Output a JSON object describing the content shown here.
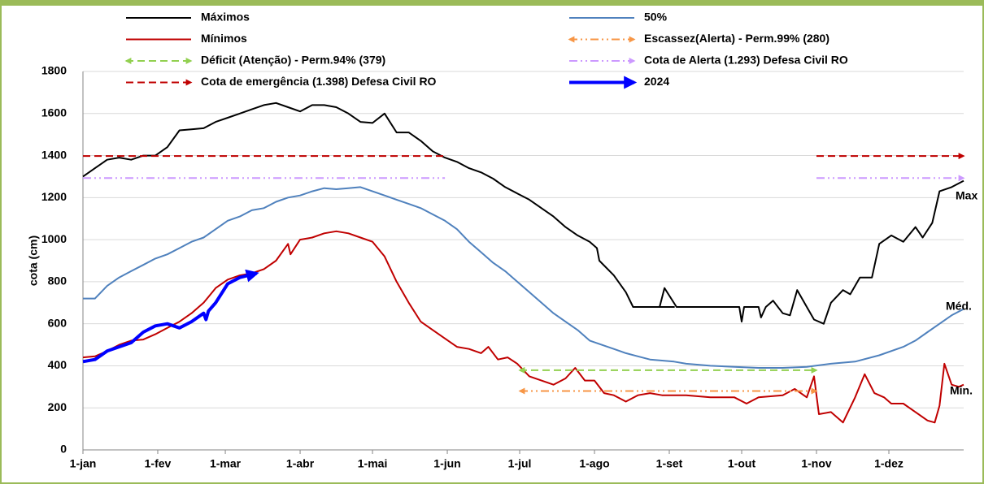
{
  "chart_data": {
    "type": "line",
    "ylabel": "cota (cm)",
    "xlim": [
      0,
      365
    ],
    "xticks": [
      {
        "value": 0,
        "label": "1-jan"
      },
      {
        "value": 31,
        "label": "1-fev"
      },
      {
        "value": 59,
        "label": "1-mar"
      },
      {
        "value": 90,
        "label": "1-abr"
      },
      {
        "value": 120,
        "label": "1-mai"
      },
      {
        "value": 151,
        "label": "1-jun"
      },
      {
        "value": 181,
        "label": "1-jul"
      },
      {
        "value": 212,
        "label": "1-ago"
      },
      {
        "value": 243,
        "label": "1-set"
      },
      {
        "value": 273,
        "label": "1-out"
      },
      {
        "value": 304,
        "label": "1-nov"
      },
      {
        "value": 334,
        "label": "1-dez"
      }
    ],
    "ylim": [
      0,
      1800
    ],
    "yticks": [
      0,
      200,
      400,
      600,
      800,
      1000,
      1200,
      1400,
      1600,
      1800
    ],
    "grid": true,
    "annotations": [
      "Max",
      "Méd.",
      "Min."
    ],
    "series": [
      {
        "name": "Máximos",
        "color": "#000000",
        "linestyle": "solid",
        "width": 2,
        "x": [
          0,
          5,
          10,
          15,
          20,
          25,
          30,
          35,
          40,
          45,
          50,
          55,
          60,
          65,
          70,
          75,
          80,
          85,
          90,
          95,
          100,
          105,
          110,
          115,
          120,
          125,
          130,
          135,
          140,
          145,
          150,
          155,
          160,
          165,
          170,
          175,
          180,
          185,
          190,
          195,
          200,
          205,
          210,
          213,
          214,
          220,
          225,
          228,
          235,
          240,
          245,
          239,
          241,
          246,
          255,
          270,
          272,
          273,
          274,
          280,
          281,
          283,
          286,
          290,
          293,
          296,
          300,
          303,
          307,
          310,
          315,
          318,
          322,
          327,
          330,
          335,
          340,
          345,
          348,
          352,
          355,
          360,
          365
        ],
        "values": [
          1300,
          1340,
          1380,
          1390,
          1380,
          1400,
          1400,
          1440,
          1520,
          1525,
          1530,
          1560,
          1580,
          1600,
          1620,
          1640,
          1650,
          1630,
          1610,
          1640,
          1640,
          1630,
          1600,
          1560,
          1555,
          1600,
          1510,
          1510,
          1470,
          1420,
          1390,
          1370,
          1340,
          1320,
          1290,
          1250,
          1220,
          1190,
          1150,
          1110,
          1060,
          1020,
          990,
          960,
          900,
          830,
          750,
          680,
          680,
          680,
          680,
          680,
          770,
          680,
          680,
          680,
          680,
          610,
          680,
          680,
          630,
          680,
          710,
          650,
          640,
          760,
          680,
          620,
          600,
          700,
          760,
          740,
          820,
          820,
          980,
          1020,
          990,
          1060,
          1010,
          1080,
          1230,
          1250,
          1280
        ]
      },
      {
        "name": "50%",
        "color": "#4f81bd",
        "linestyle": "solid",
        "width": 2,
        "x": [
          0,
          5,
          10,
          15,
          20,
          25,
          30,
          35,
          40,
          45,
          50,
          55,
          60,
          65,
          70,
          75,
          80,
          85,
          90,
          95,
          100,
          105,
          110,
          115,
          120,
          125,
          130,
          135,
          140,
          145,
          150,
          155,
          160,
          165,
          170,
          175,
          180,
          185,
          190,
          195,
          200,
          205,
          210,
          215,
          220,
          225,
          230,
          235,
          240,
          245,
          250,
          255,
          260,
          270,
          280,
          290,
          300,
          310,
          320,
          330,
          340,
          345,
          350,
          355,
          360,
          365
        ],
        "values": [
          720,
          720,
          780,
          820,
          850,
          880,
          910,
          930,
          960,
          990,
          1010,
          1050,
          1090,
          1110,
          1140,
          1150,
          1180,
          1200,
          1210,
          1230,
          1245,
          1240,
          1245,
          1250,
          1230,
          1210,
          1190,
          1170,
          1150,
          1120,
          1090,
          1050,
          990,
          940,
          890,
          850,
          800,
          750,
          700,
          650,
          610,
          570,
          520,
          500,
          480,
          460,
          445,
          430,
          425,
          420,
          410,
          405,
          400,
          395,
          390,
          390,
          395,
          410,
          420,
          450,
          490,
          520,
          560,
          600,
          640,
          670
        ]
      },
      {
        "name": "Mínimos",
        "color": "#c00000",
        "linestyle": "solid",
        "width": 2,
        "x": [
          0,
          5,
          10,
          15,
          20,
          25,
          30,
          35,
          40,
          45,
          50,
          55,
          60,
          65,
          70,
          75,
          80,
          85,
          86,
          90,
          95,
          100,
          105,
          110,
          115,
          120,
          125,
          130,
          135,
          140,
          145,
          150,
          155,
          160,
          165,
          168,
          172,
          176,
          180,
          185,
          190,
          195,
          200,
          204,
          208,
          212,
          216,
          220,
          225,
          230,
          235,
          240,
          250,
          260,
          270,
          275,
          280,
          290,
          295,
          300,
          303,
          305,
          310,
          315,
          320,
          324,
          328,
          332,
          335,
          340,
          345,
          350,
          353,
          355,
          357,
          360,
          363,
          365
        ],
        "values": [
          440,
          445,
          470,
          500,
          520,
          525,
          550,
          580,
          610,
          650,
          700,
          770,
          810,
          830,
          840,
          860,
          900,
          980,
          930,
          1000,
          1010,
          1030,
          1040,
          1030,
          1010,
          990,
          920,
          800,
          700,
          610,
          570,
          530,
          490,
          480,
          460,
          490,
          430,
          440,
          410,
          350,
          330,
          310,
          340,
          390,
          330,
          330,
          270,
          260,
          230,
          260,
          270,
          260,
          260,
          250,
          250,
          220,
          250,
          260,
          290,
          250,
          350,
          170,
          180,
          130,
          250,
          360,
          270,
          250,
          220,
          220,
          180,
          140,
          130,
          210,
          410,
          310,
          300,
          310
        ]
      },
      {
        "name": "Escassez(Alerta) - Perm.99% (280)",
        "color": "#f79646",
        "linestyle": "dashdotdot",
        "width": 2,
        "arrows": "both",
        "x": [
          181,
          304
        ],
        "values": [
          280,
          280
        ]
      },
      {
        "name": "Déficit (Atenção) - Perm.94% (379)",
        "color": "#92d050",
        "linestyle": "dashed",
        "width": 2,
        "arrows": "both",
        "x": [
          181,
          304
        ],
        "values": [
          379,
          379
        ]
      },
      {
        "name": "Cota de Alerta  (1.293) Defesa Civil RO",
        "color": "#cc99ff",
        "linestyle": "dashdotdot",
        "width": 2,
        "arrows": "end",
        "x": [
          0,
          150,
          151,
          304,
          365
        ],
        "values": [
          1293,
          1293,
          null,
          1293,
          1293
        ]
      },
      {
        "name": "Cota de emergência (1.398) Defesa Civil RO",
        "color": "#c00000",
        "linestyle": "dashed",
        "width": 2,
        "arrows": "end",
        "x": [
          0,
          150,
          151,
          304,
          365
        ],
        "values": [
          1398,
          1398,
          null,
          1398,
          1398
        ]
      },
      {
        "name": "2024",
        "color": "#0000ff",
        "linestyle": "solid",
        "width": 4,
        "arrows": "end",
        "x": [
          0,
          5,
          10,
          15,
          20,
          25,
          30,
          35,
          40,
          45,
          50,
          51,
          52,
          55,
          60,
          65,
          72
        ],
        "values": [
          420,
          430,
          470,
          490,
          510,
          560,
          590,
          600,
          580,
          610,
          650,
          620,
          660,
          700,
          790,
          820,
          840
        ]
      }
    ]
  }
}
